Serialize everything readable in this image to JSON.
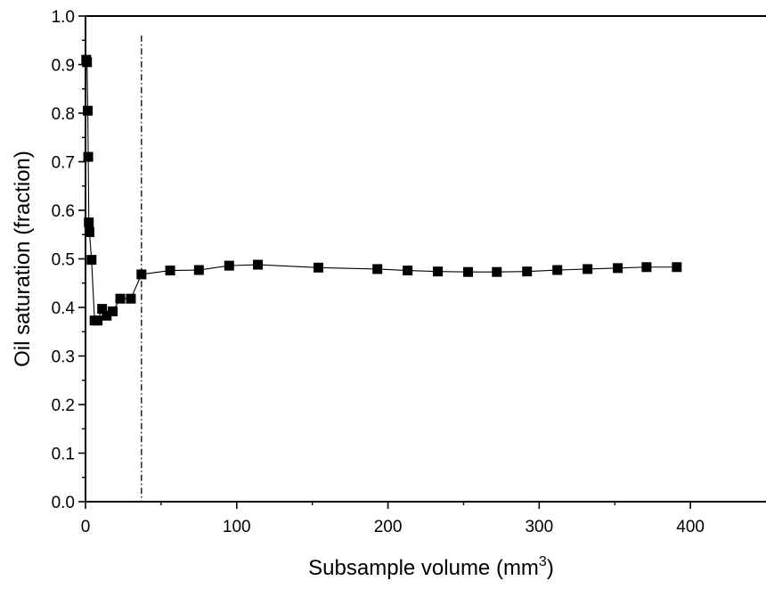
{
  "chart_data": {
    "type": "scatter",
    "line_connected": true,
    "title": "",
    "xlabel": "Subsample volume (mm",
    "xlabel_superscript": "3",
    "xlabel_suffix": ")",
    "ylabel": "Oil saturation (fraction)",
    "xlim": [
      0,
      450
    ],
    "ylim": [
      0.0,
      1.0
    ],
    "x_ticks": [
      0,
      100,
      200,
      300,
      400
    ],
    "y_ticks": [
      0.0,
      0.1,
      0.2,
      0.3,
      0.4,
      0.5,
      0.6,
      0.7,
      0.8,
      0.9,
      1.0
    ],
    "x_tick_labels": [
      "0",
      "100",
      "200",
      "300",
      "400"
    ],
    "y_tick_labels": [
      "0.0",
      "0.1",
      "0.2",
      "0.3",
      "0.4",
      "0.5",
      "0.6",
      "0.7",
      "0.8",
      "0.9",
      "1.0"
    ],
    "grid": false,
    "legend": false,
    "marker": "square",
    "series_color": "#000000",
    "reference_line": {
      "x": 37,
      "style": "dash-dot"
    },
    "series": [
      {
        "x": [
          0.5,
          1,
          1.5,
          1.8,
          2.2,
          2.6,
          4,
          6,
          8,
          11,
          14,
          18,
          23,
          30,
          37,
          56,
          75,
          95,
          114,
          154,
          193,
          213,
          233,
          253,
          272,
          292,
          312,
          332,
          352,
          371,
          391
        ],
        "y": [
          0.91,
          0.905,
          0.805,
          0.71,
          0.575,
          0.555,
          0.498,
          0.373,
          0.373,
          0.397,
          0.383,
          0.392,
          0.418,
          0.418,
          0.468,
          0.476,
          0.477,
          0.486,
          0.488,
          0.482,
          0.479,
          0.476,
          0.474,
          0.473,
          0.473,
          0.474,
          0.477,
          0.479,
          0.481,
          0.483,
          0.483
        ]
      }
    ]
  }
}
